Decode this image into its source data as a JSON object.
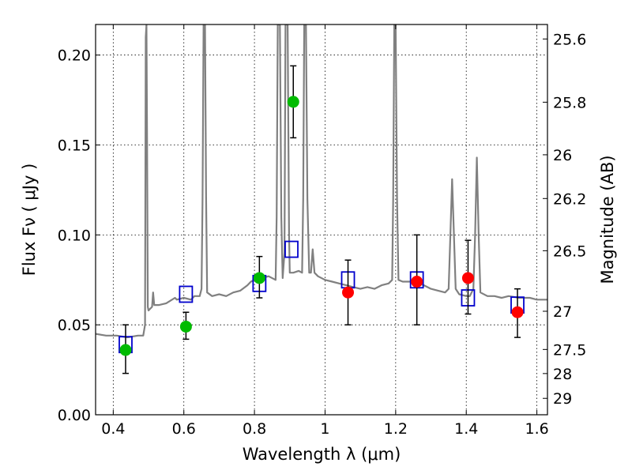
{
  "chart_data": {
    "type": "scatter",
    "xlabel": "Wavelength  λ (μm)",
    "ylabel": "Flux  Fν  ( μJy )",
    "ylabel_right": "Magnitude (AB)",
    "xlim": [
      0.35,
      1.63
    ],
    "ylim": [
      0.0,
      0.217
    ],
    "grid": true,
    "x_ticks": [
      {
        "value": 0.4,
        "label": "0.4"
      },
      {
        "value": 0.6,
        "label": "0.6"
      },
      {
        "value": 0.8,
        "label": "0.8"
      },
      {
        "value": 1.0,
        "label": "1"
      },
      {
        "value": 1.2,
        "label": "1.2"
      },
      {
        "value": 1.4,
        "label": "1.4"
      },
      {
        "value": 1.6,
        "label": "1.6"
      }
    ],
    "y_ticks": [
      {
        "value": 0.0,
        "label": "0.00"
      },
      {
        "value": 0.05,
        "label": "0.05"
      },
      {
        "value": 0.1,
        "label": "0.10"
      },
      {
        "value": 0.15,
        "label": "0.15"
      },
      {
        "value": 0.2,
        "label": "0.20"
      }
    ],
    "right_ticks": [
      {
        "mag": 25.6,
        "label": "25.6"
      },
      {
        "mag": 25.8,
        "label": "25.8"
      },
      {
        "mag": 26.0,
        "label": "26"
      },
      {
        "mag": 26.2,
        "label": "26.2"
      },
      {
        "mag": 26.5,
        "label": "26.5"
      },
      {
        "mag": 27.0,
        "label": "27"
      },
      {
        "mag": 27.5,
        "label": "27.5"
      },
      {
        "mag": 28.0,
        "label": "28"
      },
      {
        "mag": 29.0,
        "label": "29"
      }
    ],
    "series": [
      {
        "kind": "line",
        "color": "#808080",
        "points": [
          [
            0.35,
            0.045
          ],
          [
            0.38,
            0.044
          ],
          [
            0.41,
            0.044
          ],
          [
            0.44,
            0.043
          ],
          [
            0.47,
            0.044
          ],
          [
            0.485,
            0.044
          ],
          [
            0.49,
            0.05
          ],
          [
            0.492,
            0.21
          ],
          [
            0.494,
            0.217
          ],
          [
            0.496,
            0.15
          ],
          [
            0.498,
            0.06
          ],
          [
            0.5,
            0.058
          ],
          [
            0.51,
            0.06
          ],
          [
            0.513,
            0.068
          ],
          [
            0.516,
            0.061
          ],
          [
            0.53,
            0.061
          ],
          [
            0.55,
            0.062
          ],
          [
            0.575,
            0.065
          ],
          [
            0.58,
            0.064
          ],
          [
            0.6,
            0.065
          ],
          [
            0.62,
            0.064
          ],
          [
            0.63,
            0.066
          ],
          [
            0.645,
            0.066
          ],
          [
            0.65,
            0.07
          ],
          [
            0.653,
            0.12
          ],
          [
            0.656,
            0.217
          ],
          [
            0.66,
            0.217
          ],
          [
            0.663,
            0.12
          ],
          [
            0.666,
            0.068
          ],
          [
            0.68,
            0.066
          ],
          [
            0.7,
            0.067
          ],
          [
            0.72,
            0.066
          ],
          [
            0.74,
            0.068
          ],
          [
            0.76,
            0.069
          ],
          [
            0.78,
            0.072
          ],
          [
            0.79,
            0.074
          ],
          [
            0.8,
            0.075
          ],
          [
            0.82,
            0.076
          ],
          [
            0.84,
            0.077
          ],
          [
            0.86,
            0.075
          ],
          [
            0.863,
            0.11
          ],
          [
            0.866,
            0.217
          ],
          [
            0.872,
            0.217
          ],
          [
            0.876,
            0.11
          ],
          [
            0.88,
            0.076
          ],
          [
            0.885,
            0.09
          ],
          [
            0.888,
            0.217
          ],
          [
            0.894,
            0.217
          ],
          [
            0.898,
            0.1
          ],
          [
            0.9,
            0.079
          ],
          [
            0.91,
            0.079
          ],
          [
            0.925,
            0.08
          ],
          [
            0.935,
            0.079
          ],
          [
            0.938,
            0.12
          ],
          [
            0.941,
            0.217
          ],
          [
            0.946,
            0.217
          ],
          [
            0.95,
            0.12
          ],
          [
            0.955,
            0.079
          ],
          [
            0.96,
            0.079
          ],
          [
            0.965,
            0.092
          ],
          [
            0.97,
            0.079
          ],
          [
            0.98,
            0.077
          ],
          [
            1.0,
            0.075
          ],
          [
            1.02,
            0.074
          ],
          [
            1.04,
            0.073
          ],
          [
            1.06,
            0.072
          ],
          [
            1.08,
            0.071
          ],
          [
            1.1,
            0.07
          ],
          [
            1.12,
            0.071
          ],
          [
            1.14,
            0.07
          ],
          [
            1.16,
            0.072
          ],
          [
            1.18,
            0.073
          ],
          [
            1.19,
            0.075
          ],
          [
            1.193,
            0.12
          ],
          [
            1.196,
            0.217
          ],
          [
            1.2,
            0.217
          ],
          [
            1.204,
            0.12
          ],
          [
            1.208,
            0.075
          ],
          [
            1.22,
            0.074
          ],
          [
            1.25,
            0.074
          ],
          [
            1.28,
            0.072
          ],
          [
            1.3,
            0.07
          ],
          [
            1.32,
            0.069
          ],
          [
            1.34,
            0.068
          ],
          [
            1.35,
            0.07
          ],
          [
            1.355,
            0.1
          ],
          [
            1.36,
            0.131
          ],
          [
            1.365,
            0.1
          ],
          [
            1.37,
            0.07
          ],
          [
            1.38,
            0.067
          ],
          [
            1.4,
            0.066
          ],
          [
            1.41,
            0.066
          ],
          [
            1.42,
            0.07
          ],
          [
            1.425,
            0.1
          ],
          [
            1.43,
            0.143
          ],
          [
            1.435,
            0.1
          ],
          [
            1.44,
            0.068
          ],
          [
            1.46,
            0.066
          ],
          [
            1.48,
            0.066
          ],
          [
            1.5,
            0.065
          ],
          [
            1.52,
            0.066
          ],
          [
            1.55,
            0.065
          ],
          [
            1.58,
            0.065
          ],
          [
            1.6,
            0.064
          ],
          [
            1.63,
            0.064
          ]
        ]
      },
      {
        "kind": "model-box",
        "color": "#0000cc",
        "points": [
          {
            "x": 0.435,
            "y": 0.039
          },
          {
            "x": 0.606,
            "y": 0.067
          },
          {
            "x": 0.814,
            "y": 0.073
          },
          {
            "x": 0.905,
            "y": 0.092
          },
          {
            "x": 1.065,
            "y": 0.075
          },
          {
            "x": 1.26,
            "y": 0.075
          },
          {
            "x": 1.405,
            "y": 0.065
          },
          {
            "x": 1.545,
            "y": 0.061
          }
        ]
      },
      {
        "kind": "errorbar",
        "color": "#000000",
        "points": [
          {
            "x": 0.435,
            "lo": 0.023,
            "hi": 0.05
          },
          {
            "x": 0.606,
            "lo": 0.042,
            "hi": 0.057
          },
          {
            "x": 0.814,
            "lo": 0.065,
            "hi": 0.088
          },
          {
            "x": 0.91,
            "lo": 0.154,
            "hi": 0.194
          },
          {
            "x": 1.065,
            "lo": 0.05,
            "hi": 0.086
          },
          {
            "x": 1.26,
            "lo": 0.05,
            "hi": 0.1
          },
          {
            "x": 1.405,
            "lo": 0.056,
            "hi": 0.097
          },
          {
            "x": 1.545,
            "lo": 0.043,
            "hi": 0.07
          }
        ]
      },
      {
        "kind": "points",
        "color": "#00bb00",
        "points": [
          {
            "x": 0.435,
            "y": 0.036
          },
          {
            "x": 0.606,
            "y": 0.049
          },
          {
            "x": 0.814,
            "y": 0.076
          },
          {
            "x": 0.91,
            "y": 0.174
          }
        ]
      },
      {
        "kind": "points",
        "color": "#ff0000",
        "points": [
          {
            "x": 1.065,
            "y": 0.068
          },
          {
            "x": 1.26,
            "y": 0.074
          },
          {
            "x": 1.405,
            "y": 0.076
          },
          {
            "x": 1.545,
            "y": 0.057
          }
        ]
      }
    ]
  }
}
